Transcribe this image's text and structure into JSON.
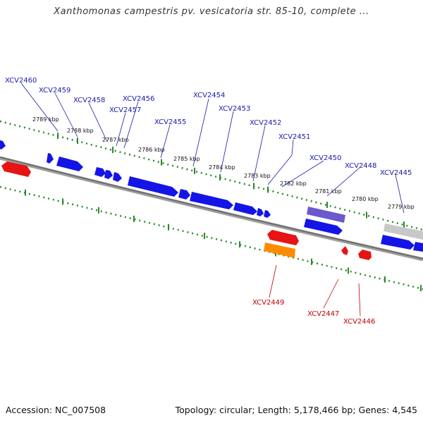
{
  "title": "Xanthomonas campestris pv. vesicatoria str. 85-10, complete ...",
  "footer": {
    "accession": "Accession: NC_007508",
    "summary": "Topology: circular; Length: 5,178,466 bp; Genes: 4,545"
  },
  "colors": {
    "forward_gene": "#1414e6",
    "reverse_gene": "#e61414",
    "highlight_gene": "#6a5acd",
    "orange_gene": "#ff8c00",
    "grey_gene": "#c0c0c0",
    "backbone": "#7a7a7a",
    "ticks": "#2a8a2a",
    "top_label": "#1a1aa8",
    "bottom_label": "#c00000"
  },
  "kbp_ticks": [
    "2789 kbp",
    "2788 kbp",
    "2787 kbp",
    "2786 kbp",
    "2785 kbp",
    "2784 kbp",
    "2783 kbp",
    "2782 kbp",
    "2781 kbp",
    "2780 kbp",
    "2779 kbp"
  ],
  "top_labels": [
    "XCV2460",
    "XCV2459",
    "XCV2458",
    "XCV2456",
    "XCV2457",
    "XCV2455",
    "XCV2454",
    "XCV2453",
    "XCV2452",
    "XCV2451",
    "XCV2450",
    "XCV2448",
    "XCV2445"
  ],
  "bottom_labels": [
    "XCV2449",
    "XCV2447",
    "XCV2446"
  ]
}
